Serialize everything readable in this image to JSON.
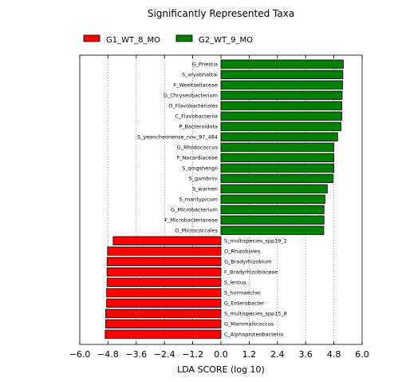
{
  "chart_data": {
    "type": "bar",
    "orientation": "horizontal",
    "title": "Significantly Represented Taxa",
    "xlabel": "LDA SCORE (log 10)",
    "ylabel": "",
    "xlim": [
      -6.0,
      6.0
    ],
    "xticks": [
      -6.0,
      -4.8,
      -3.6,
      -2.4,
      -1.2,
      0.0,
      1.2,
      2.4,
      3.6,
      4.8,
      6.0
    ],
    "xtick_labels": [
      "−6.0",
      "−4.8",
      "−3.6",
      "−2.4",
      "−1.2",
      "0.0",
      "1.2",
      "2.4",
      "3.6",
      "4.8",
      "6.0"
    ],
    "grid": "vertical dotted",
    "legend_position": "top",
    "series": [
      {
        "name": "G1_WT_8_MO",
        "color": "#ff0000"
      },
      {
        "name": "G2_WT_9_MO",
        "color": "#008000"
      }
    ],
    "bars": [
      {
        "label": "G_Priestia",
        "value": 5.2,
        "group": "G2_WT_9_MO"
      },
      {
        "label": "S_aryabhattai",
        "value": 5.18,
        "group": "G2_WT_9_MO"
      },
      {
        "label": "F_Weeksellaceae",
        "value": 5.17,
        "group": "G2_WT_9_MO"
      },
      {
        "label": "G_Chryseobacterium",
        "value": 5.15,
        "group": "G2_WT_9_MO"
      },
      {
        "label": "O_Flavobacteriales",
        "value": 5.14,
        "group": "G2_WT_9_MO"
      },
      {
        "label": "C_Flavobacteriia",
        "value": 5.14,
        "group": "G2_WT_9_MO"
      },
      {
        "label": "P_Bacteroidota",
        "value": 5.1,
        "group": "G2_WT_9_MO"
      },
      {
        "label": "S_yeoncheonense_nov_97_484",
        "value": 4.96,
        "group": "G2_WT_9_MO"
      },
      {
        "label": "G_Rhodococcus",
        "value": 4.8,
        "group": "G2_WT_9_MO"
      },
      {
        "label": "F_Nocardiaceae",
        "value": 4.8,
        "group": "G2_WT_9_MO"
      },
      {
        "label": "S_qingshengii",
        "value": 4.8,
        "group": "G2_WT_9_MO"
      },
      {
        "label": "S_gambrini",
        "value": 4.76,
        "group": "G2_WT_9_MO"
      },
      {
        "label": "S_warneri",
        "value": 4.52,
        "group": "G2_WT_9_MO"
      },
      {
        "label": "S_maritypicum",
        "value": 4.42,
        "group": "G2_WT_9_MO"
      },
      {
        "label": "G_Microbacterium",
        "value": 4.38,
        "group": "G2_WT_9_MO"
      },
      {
        "label": "F_Microbacteriaceae",
        "value": 4.38,
        "group": "G2_WT_9_MO"
      },
      {
        "label": "O_Micrococcales",
        "value": 4.37,
        "group": "G2_WT_9_MO"
      },
      {
        "label": "S_multispecies_spp19_2",
        "value": -4.58,
        "group": "G1_WT_8_MO"
      },
      {
        "label": "O_Rhizobiales",
        "value": -4.82,
        "group": "G1_WT_8_MO"
      },
      {
        "label": "G_Bradyrhizobium",
        "value": -4.84,
        "group": "G1_WT_8_MO"
      },
      {
        "label": "F_Bradyrhizobiaceae",
        "value": -4.84,
        "group": "G1_WT_8_MO"
      },
      {
        "label": "S_lentus",
        "value": -4.84,
        "group": "G1_WT_8_MO"
      },
      {
        "label": "S_hormaechei",
        "value": -4.86,
        "group": "G1_WT_8_MO"
      },
      {
        "label": "G_Enterobacter",
        "value": -4.86,
        "group": "G1_WT_8_MO"
      },
      {
        "label": "S_multispecies_spp15_8",
        "value": -4.9,
        "group": "G1_WT_8_MO"
      },
      {
        "label": "G_Mammaliicoccus",
        "value": -4.9,
        "group": "G1_WT_8_MO"
      },
      {
        "label": "C_Alphaproteobacteria",
        "value": -4.92,
        "group": "G1_WT_8_MO"
      }
    ]
  }
}
